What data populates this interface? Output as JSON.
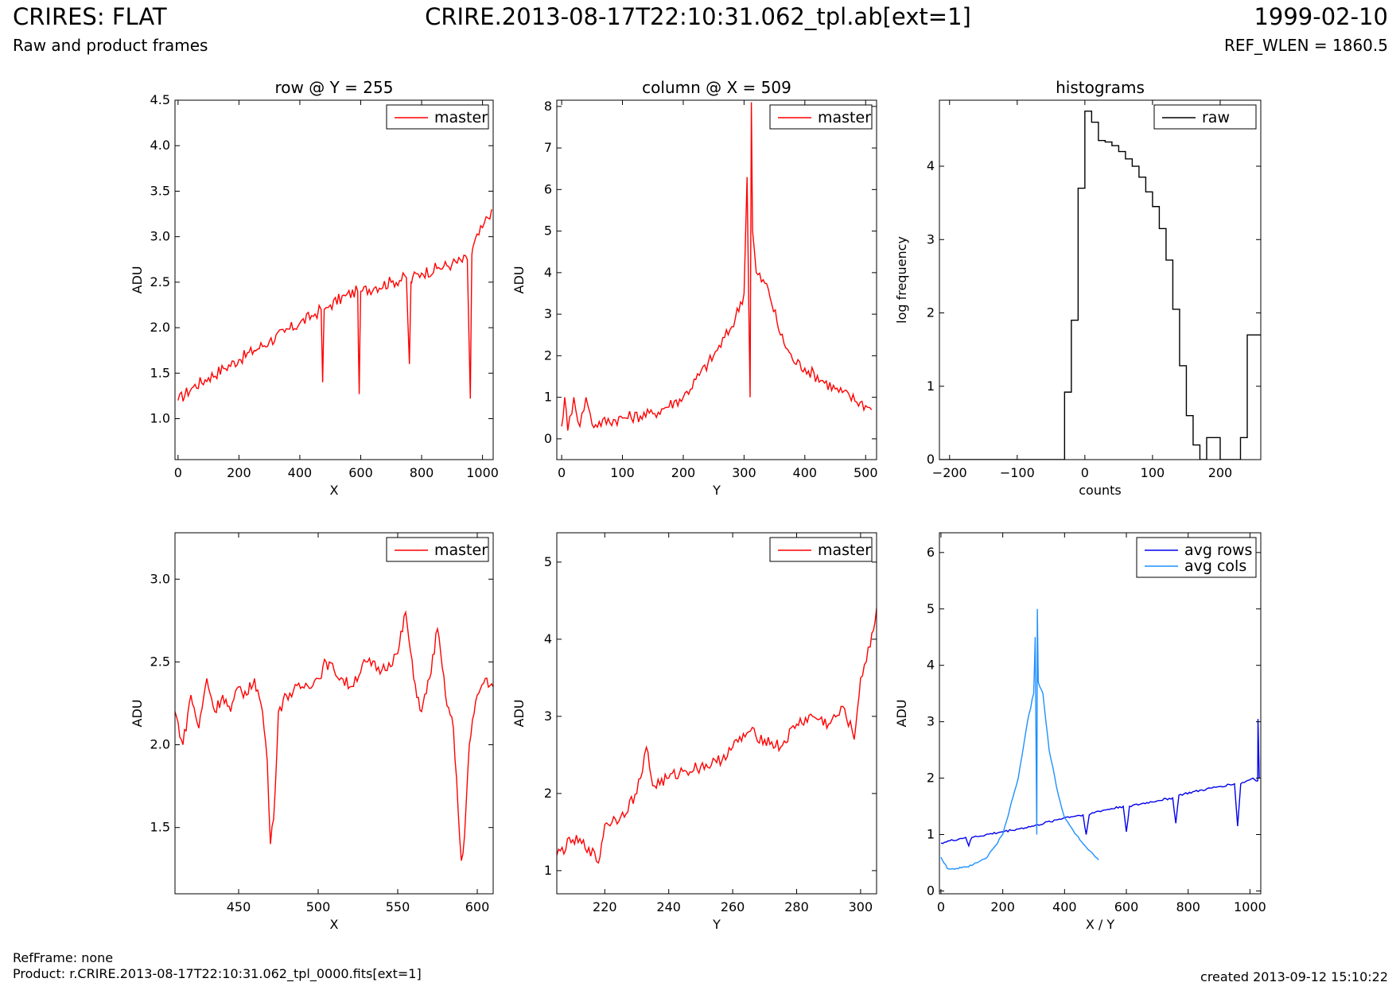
{
  "header": {
    "title_left": "CRIRES: FLAT",
    "subtitle_left": "Raw and product frames",
    "title_center": "CRIRE.2013-08-17T22:10:31.062_tpl.ab[ext=1]",
    "title_right": "1999-02-10",
    "subtitle_right": "REF_WLEN = 1860.5"
  },
  "footer": {
    "refframe": "RefFrame: none",
    "product": "Product: r.CRIRE.2013-08-17T22:10:31.062_tpl_0000.fits[ext=1]",
    "created": "created 2013-09-12 15:10:22"
  },
  "colors": {
    "master": "#ff0000",
    "raw": "#000000",
    "avg_rows": "#0000ee",
    "avg_cols": "#1e90ff"
  },
  "chart_data": [
    {
      "type": "line",
      "title": "row @ Y = 255",
      "xlabel": "X",
      "ylabel": "ADU",
      "xlim": [
        -10,
        1035
      ],
      "ylim": [
        0.55,
        4.5
      ],
      "xticks": [
        0,
        200,
        400,
        600,
        800,
        1000
      ],
      "yticks": [
        1.0,
        1.5,
        2.0,
        2.5,
        3.0,
        3.5,
        4.0,
        4.5
      ],
      "ytick_decimals": 1,
      "legend": "top-right",
      "series": [
        {
          "name": "master",
          "color": "#ff0000",
          "x": [
            0,
            50,
            100,
            150,
            200,
            250,
            300,
            350,
            400,
            450,
            470,
            475,
            480,
            500,
            550,
            590,
            595,
            600,
            650,
            700,
            750,
            760,
            765,
            770,
            800,
            850,
            900,
            950,
            960,
            965,
            970,
            1000,
            1030
          ],
          "y": [
            1.2,
            1.35,
            1.45,
            1.55,
            1.65,
            1.75,
            1.85,
            1.95,
            2.05,
            2.15,
            2.2,
            1.4,
            2.2,
            2.25,
            2.35,
            2.4,
            1.27,
            2.4,
            2.45,
            2.5,
            2.55,
            1.6,
            2.5,
            2.55,
            2.6,
            2.65,
            2.7,
            2.75,
            1.22,
            2.8,
            2.9,
            3.1,
            3.3
          ]
        }
      ]
    },
    {
      "type": "line",
      "title": "column @ X = 509",
      "xlabel": "Y",
      "ylabel": "ADU",
      "xlim": [
        -8,
        518
      ],
      "ylim": [
        -0.5,
        8.15
      ],
      "xticks": [
        0,
        100,
        200,
        300,
        400,
        500
      ],
      "yticks": [
        0,
        1,
        2,
        3,
        4,
        5,
        6,
        7,
        8
      ],
      "ytick_decimals": 0,
      "legend": "top-right",
      "series": [
        {
          "name": "master",
          "color": "#ff0000",
          "x": [
            0,
            5,
            10,
            20,
            30,
            40,
            50,
            100,
            150,
            200,
            250,
            280,
            300,
            305,
            310,
            312,
            314,
            320,
            340,
            360,
            380,
            400,
            450,
            500,
            510
          ],
          "y": [
            0.3,
            1.0,
            0.2,
            1.0,
            0.3,
            1.0,
            0.35,
            0.5,
            0.6,
            1.0,
            2.0,
            2.7,
            3.5,
            6.3,
            1.0,
            8.1,
            5.0,
            4.0,
            3.6,
            2.5,
            1.9,
            1.7,
            1.2,
            0.8,
            0.7
          ]
        }
      ]
    },
    {
      "type": "histogram",
      "title": "histograms",
      "xlabel": "counts",
      "ylabel": "log frequency",
      "xlim": [
        -215,
        260
      ],
      "ylim": [
        0,
        4.9
      ],
      "xticks": [
        -200,
        -100,
        0,
        100,
        200
      ],
      "yticks": [
        0,
        1,
        2,
        3,
        4
      ],
      "xtick_labels": [
        "−200",
        "−100",
        "0",
        "100",
        "200"
      ],
      "ytick_decimals": 0,
      "legend": "top-right",
      "series": [
        {
          "name": "raw",
          "color": "#000000",
          "x": [
            -215,
            -30,
            -20,
            -10,
            0,
            10,
            20,
            30,
            40,
            50,
            60,
            70,
            80,
            90,
            100,
            110,
            120,
            130,
            140,
            150,
            160,
            170,
            180,
            190,
            200,
            210,
            220,
            230,
            240,
            250,
            260
          ],
          "y": [
            0,
            0.92,
            1.9,
            3.7,
            4.75,
            4.6,
            4.35,
            4.33,
            4.28,
            4.2,
            4.1,
            4.0,
            3.85,
            3.65,
            3.45,
            3.15,
            2.72,
            2.05,
            1.28,
            0.6,
            0.2,
            0,
            0.3,
            0.3,
            0,
            0,
            0,
            0.3,
            1.7,
            1.7,
            1.7
          ]
        }
      ]
    },
    {
      "type": "line",
      "title": "",
      "xlabel": "X",
      "ylabel": "ADU",
      "xlim": [
        410,
        610
      ],
      "ylim": [
        1.1,
        3.28
      ],
      "xticks": [
        450,
        500,
        550,
        600
      ],
      "yticks": [
        1.5,
        2.0,
        2.5,
        3.0
      ],
      "ytick_decimals": 1,
      "legend": "top-right",
      "series": [
        {
          "name": "master",
          "color": "#ff0000",
          "x": [
            410,
            415,
            420,
            425,
            430,
            435,
            440,
            445,
            450,
            455,
            460,
            465,
            468,
            470,
            472,
            475,
            480,
            490,
            500,
            505,
            510,
            520,
            530,
            540,
            550,
            555,
            560,
            565,
            570,
            575,
            580,
            585,
            588,
            590,
            592,
            595,
            600,
            605,
            610
          ],
          "y": [
            2.2,
            2.0,
            2.3,
            2.1,
            2.4,
            2.2,
            2.3,
            2.2,
            2.35,
            2.3,
            2.4,
            2.2,
            1.9,
            1.4,
            1.55,
            2.2,
            2.3,
            2.35,
            2.4,
            2.5,
            2.45,
            2.35,
            2.5,
            2.45,
            2.55,
            2.8,
            2.4,
            2.2,
            2.4,
            2.7,
            2.3,
            2.1,
            1.6,
            1.3,
            1.45,
            2.0,
            2.3,
            2.4,
            2.35
          ]
        }
      ]
    },
    {
      "type": "line",
      "title": "",
      "xlabel": "Y",
      "ylabel": "ADU",
      "xlim": [
        205,
        305
      ],
      "ylim": [
        0.7,
        5.38
      ],
      "xticks": [
        220,
        240,
        260,
        280,
        300
      ],
      "yticks": [
        1,
        2,
        3,
        4,
        5
      ],
      "ytick_decimals": 0,
      "legend": "top-right",
      "series": [
        {
          "name": "master",
          "color": "#ff0000",
          "x": [
            205,
            210,
            215,
            218,
            220,
            225,
            230,
            233,
            235,
            240,
            245,
            250,
            255,
            260,
            265,
            270,
            275,
            280,
            285,
            290,
            295,
            298,
            300,
            303,
            305
          ],
          "y": [
            1.2,
            1.4,
            1.3,
            1.1,
            1.6,
            1.7,
            2.0,
            2.6,
            2.1,
            2.2,
            2.3,
            2.35,
            2.4,
            2.6,
            2.8,
            2.7,
            2.6,
            2.9,
            3.0,
            2.9,
            3.1,
            2.7,
            3.5,
            3.9,
            4.4
          ]
        }
      ]
    },
    {
      "type": "line",
      "title": "",
      "xlabel": "X / Y",
      "ylabel": "ADU",
      "xlim": [
        -5,
        1035
      ],
      "ylim": [
        -0.05,
        6.35
      ],
      "xticks": [
        0,
        200,
        400,
        600,
        800,
        1000
      ],
      "yticks": [
        0,
        1,
        2,
        3,
        4,
        5,
        6
      ],
      "ytick_decimals": 0,
      "legend": "top-right",
      "series": [
        {
          "name": "avg rows",
          "color": "#0000ee",
          "x": [
            0,
            80,
            90,
            100,
            200,
            300,
            400,
            460,
            470,
            480,
            500,
            590,
            600,
            610,
            700,
            750,
            760,
            770,
            900,
            950,
            960,
            970,
            1010,
            1025,
            1026,
            1030
          ],
          "y": [
            0.85,
            0.95,
            0.8,
            0.95,
            1.05,
            1.15,
            1.3,
            1.35,
            1.0,
            1.35,
            1.4,
            1.5,
            1.05,
            1.5,
            1.6,
            1.65,
            1.2,
            1.7,
            1.85,
            1.9,
            1.15,
            1.9,
            2.0,
            1.95,
            3.05,
            2.0
          ]
        },
        {
          "name": "avg cols",
          "color": "#1e90ff",
          "x": [
            0,
            20,
            50,
            100,
            150,
            200,
            250,
            280,
            300,
            305,
            310,
            312,
            315,
            330,
            350,
            380,
            400,
            450,
            500,
            510
          ],
          "y": [
            0.6,
            0.4,
            0.4,
            0.45,
            0.6,
            1.0,
            2.0,
            3.0,
            3.5,
            4.5,
            1.0,
            5.0,
            3.7,
            3.5,
            2.5,
            1.7,
            1.3,
            0.9,
            0.6,
            0.55
          ]
        }
      ]
    }
  ]
}
